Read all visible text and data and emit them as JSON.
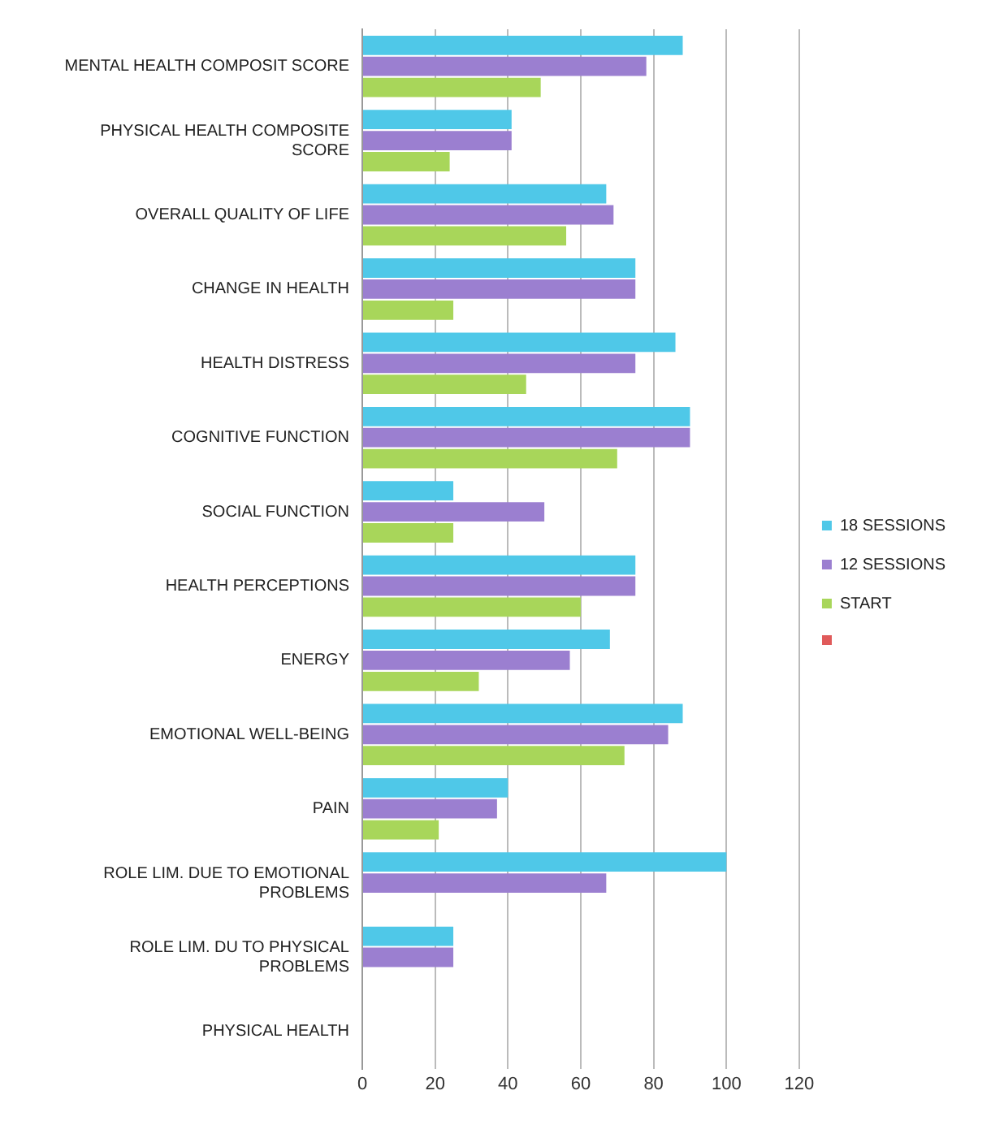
{
  "chart_data": {
    "type": "bar",
    "orientation": "horizontal",
    "categories": [
      "MENTAL HEALTH COMPOSIT SCORE",
      "PHYSICAL HEALTH COMPOSITE SCORE",
      "OVERALL QUALITY OF LIFE",
      "CHANGE IN HEALTH",
      "HEALTH DISTRESS",
      "COGNITIVE FUNCTION",
      "SOCIAL FUNCTION",
      "HEALTH PERCEPTIONS",
      "ENERGY",
      "EMOTIONAL WELL-BEING",
      "PAIN",
      "ROLE LIM. DUE TO EMOTIONAL PROBLEMS",
      "ROLE LIM. DU TO PHYSICAL PROBLEMS",
      "PHYSICAL HEALTH"
    ],
    "series": [
      {
        "name": "18 SESSIONS",
        "color": "#4fc8e8",
        "values": [
          88,
          41,
          67,
          75,
          86,
          90,
          25,
          75,
          68,
          88,
          40,
          100,
          25,
          0
        ]
      },
      {
        "name": "12 SESSIONS",
        "color": "#9b7fd0",
        "values": [
          78,
          41,
          69,
          75,
          75,
          90,
          50,
          75,
          57,
          84,
          37,
          67,
          25,
          0
        ]
      },
      {
        "name": "START",
        "color": "#a8d65a",
        "values": [
          49,
          24,
          56,
          25,
          45,
          70,
          25,
          60,
          32,
          72,
          21,
          0,
          0,
          0
        ]
      }
    ],
    "xlim": [
      0,
      120
    ],
    "xticks": [
      0,
      20,
      40,
      60,
      80,
      100,
      120
    ],
    "grid": "x",
    "legend": "right"
  }
}
